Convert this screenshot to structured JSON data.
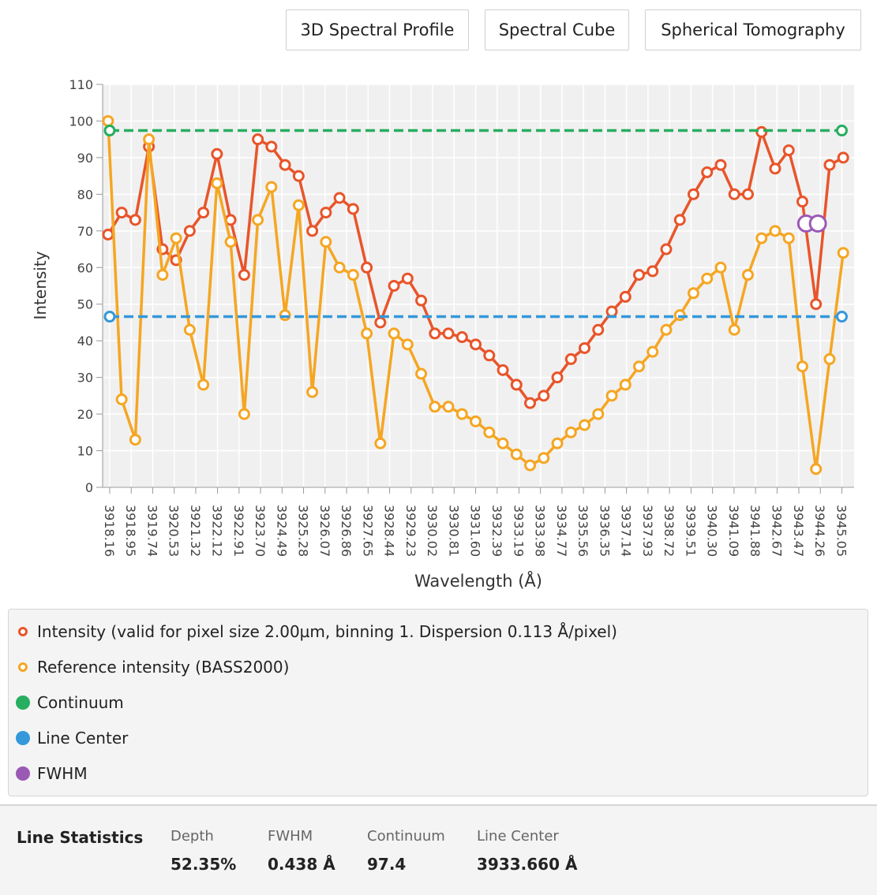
{
  "buttons": [
    "3D Spectral Profile",
    "Spectral Cube",
    "Spherical Tomography"
  ],
  "chart_data": {
    "type": "line",
    "ylabel": "Intensity",
    "xlabel": "Wavelength (Å)",
    "xlim": [
      3917.9,
      3945.5
    ],
    "xticks": [
      3918.16,
      3918.95,
      3919.74,
      3920.53,
      3921.32,
      3922.12,
      3922.91,
      {
        "value": 3923.7,
        "label": "3923.70"
      },
      3924.49,
      3925.28,
      3926.07,
      3926.86,
      3927.65,
      3928.44,
      3929.23,
      3930.02,
      3930.81,
      {
        "value": 3931.6,
        "label": "3931.60"
      },
      3932.39,
      3933.19,
      3933.98,
      3934.77,
      3935.56,
      3936.35,
      3937.14,
      3937.93,
      3938.72,
      3939.51,
      {
        "value": 3940.3,
        "label": "3940.30"
      },
      3941.09,
      3941.88,
      3942.67,
      3943.47,
      3944.26,
      3945.05
    ],
    "ylim": [
      0,
      110
    ],
    "yticks": [
      0,
      10,
      20,
      30,
      40,
      50,
      60,
      70,
      80,
      90,
      100,
      110
    ],
    "grid": true,
    "series": [
      {
        "name": "Intensity (valid for pixel size 2.00µm, binning 1. Dispersion 0.113  Å/pixel)",
        "color": "#e8552a",
        "line_style": "solid",
        "legend_symbol": "ring",
        "x": [
          3918.1,
          3918.6,
          3919.1,
          3919.6,
          3920.1,
          3920.6,
          3921.1,
          3921.6,
          3922.1,
          3922.6,
          3923.1,
          3923.6,
          3924.1,
          3924.6,
          3925.1,
          3925.6,
          3926.1,
          3926.6,
          3927.1,
          3927.6,
          3928.1,
          3928.6,
          3929.1,
          3929.6,
          3930.1,
          3930.6,
          3931.1,
          3931.6,
          3932.1,
          3932.6,
          3933.1,
          3933.6,
          3934.1,
          3934.6,
          3935.1,
          3935.6,
          3936.1,
          3936.6,
          3937.1,
          3937.6,
          3938.1,
          3938.6,
          3939.1,
          3939.6,
          3940.1,
          3940.6,
          3941.1,
          3941.6,
          3942.1,
          3942.6,
          3943.1,
          3943.6,
          3944.1,
          3944.6,
          3945.1
        ],
        "values": [
          69,
          75,
          73,
          93,
          65,
          62,
          70,
          75,
          91,
          73,
          58,
          95,
          93,
          88,
          85,
          70,
          75,
          79,
          76,
          60,
          45,
          55,
          57,
          51,
          42,
          42,
          41,
          39,
          36,
          32,
          28,
          23,
          25,
          30,
          35,
          38,
          43,
          48,
          52,
          58,
          59,
          65,
          73,
          80,
          86,
          88,
          80,
          80,
          97,
          87,
          92,
          78,
          50,
          88,
          90
        ]
      },
      {
        "name": "Reference intensity (BASS2000)",
        "color": "#f5a623",
        "line_style": "solid",
        "legend_symbol": "ring",
        "x": [
          3918.1,
          3918.6,
          3919.1,
          3919.6,
          3920.1,
          3920.6,
          3921.1,
          3921.6,
          3922.1,
          3922.6,
          3923.1,
          3923.6,
          3924.1,
          3924.6,
          3925.1,
          3925.6,
          3926.1,
          3926.6,
          3927.1,
          3927.6,
          3928.1,
          3928.6,
          3929.1,
          3929.6,
          3930.1,
          3930.6,
          3931.1,
          3931.6,
          3932.1,
          3932.6,
          3933.1,
          3933.6,
          3934.1,
          3934.6,
          3935.1,
          3935.6,
          3936.1,
          3936.6,
          3937.1,
          3937.6,
          3938.1,
          3938.6,
          3939.1,
          3939.6,
          3940.1,
          3940.6,
          3941.1,
          3941.6,
          3942.1,
          3942.6,
          3943.1,
          3943.6,
          3944.1,
          3944.6,
          3945.1
        ],
        "values": [
          100,
          24,
          13,
          95,
          58,
          68,
          43,
          28,
          83,
          67,
          20,
          73,
          82,
          47,
          77,
          26,
          67,
          60,
          58,
          42,
          12,
          42,
          39,
          31,
          22,
          22,
          20,
          18,
          15,
          12,
          9,
          6,
          8,
          12,
          15,
          17,
          20,
          25,
          28,
          33,
          37,
          43,
          47,
          53,
          57,
          60,
          43,
          58,
          68,
          70,
          68,
          33,
          5,
          35,
          64
        ]
      },
      {
        "name": "Continuum",
        "color": "#27ae60",
        "line_style": "dashed",
        "legend_symbol": "dot",
        "x": [
          3918.16,
          3945.05
        ],
        "values": [
          97.4,
          97.4
        ]
      },
      {
        "name": "Line Center",
        "color": "#3498db",
        "line_style": "dashed",
        "legend_symbol": "dot",
        "x": [
          3918.16,
          3945.05
        ],
        "values": [
          46.6,
          46.6
        ]
      },
      {
        "name": "FWHM",
        "color": "#9b59b6",
        "line_style": "none",
        "legend_symbol": "dot",
        "x": [
          3943.74,
          3944.17
        ],
        "values": [
          72,
          72
        ]
      }
    ]
  },
  "line_statistics": {
    "title": "Line Statistics",
    "items": [
      {
        "label": "Depth",
        "value": "52.35%"
      },
      {
        "label": "FWHM",
        "value": "0.438 Å"
      },
      {
        "label": "Continuum",
        "value": "97.4"
      },
      {
        "label": "Line Center",
        "value": "3933.660 Å"
      }
    ]
  }
}
